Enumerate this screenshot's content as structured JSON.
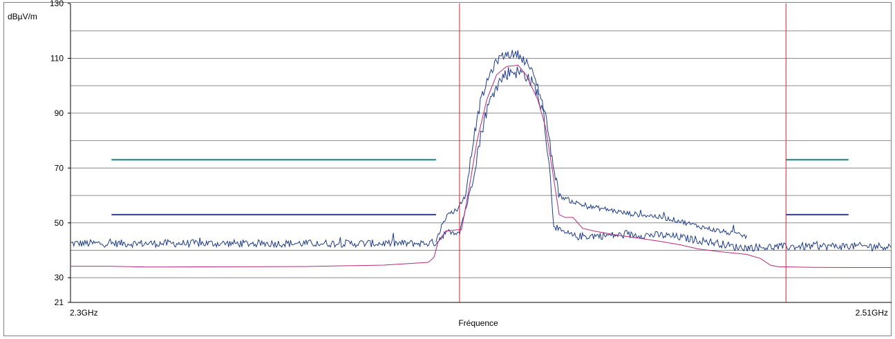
{
  "chart_data": {
    "type": "line",
    "ylabel": "dBµV/m",
    "xlabel": "Fréquence",
    "x_tick_labels": [
      "2.3GHz",
      "2.51GHz"
    ],
    "x_unit": "GHz",
    "xlim": [
      2.3,
      2.51
    ],
    "ylim": [
      21,
      130
    ],
    "y_tick_labels": [
      "130",
      "110",
      "90",
      "70",
      "50",
      "30",
      "21"
    ],
    "y_ticks": [
      130,
      110,
      90,
      70,
      50,
      30,
      21
    ],
    "y_grid_lines": [
      120,
      110,
      100,
      90,
      80,
      70,
      60,
      50,
      40,
      30
    ],
    "grid": true,
    "markers": [
      {
        "x": 2.3995,
        "color": "#e0202a"
      },
      {
        "x": 2.483,
        "color": "#e0202a"
      }
    ],
    "limit_lines": [
      {
        "color": "#0f8080",
        "y": 73,
        "segments": [
          [
            2.3105,
            2.3935
          ],
          [
            2.483,
            2.499
          ]
        ]
      },
      {
        "color": "#26408f",
        "y": 53,
        "segments": [
          [
            2.3105,
            2.3935
          ],
          [
            2.483,
            2.499
          ]
        ]
      }
    ],
    "series": [
      {
        "color": "#1c3a8c",
        "style": "noisy",
        "noise_amp": 1.4,
        "points": [
          [
            2.3,
            42.5
          ],
          [
            2.39,
            42.5
          ],
          [
            2.3935,
            42.8
          ],
          [
            2.3955,
            46
          ],
          [
            2.397,
            46.5
          ],
          [
            2.3995,
            47
          ],
          [
            2.402,
            60
          ],
          [
            2.404,
            75
          ],
          [
            2.406,
            89
          ],
          [
            2.4085,
            99
          ],
          [
            2.411,
            104
          ],
          [
            2.413,
            105.5
          ],
          [
            2.4165,
            104
          ],
          [
            2.419,
            99
          ],
          [
            2.421,
            89
          ],
          [
            2.422,
            77
          ],
          [
            2.423,
            62
          ],
          [
            2.4235,
            50
          ],
          [
            2.425,
            47
          ],
          [
            2.429,
            45
          ],
          [
            2.434,
            45.3
          ],
          [
            2.44,
            45.5
          ],
          [
            2.446,
            45.6
          ],
          [
            2.451,
            45.5
          ],
          [
            2.4555,
            44.8
          ],
          [
            2.46,
            43.8
          ],
          [
            2.466,
            42.5
          ],
          [
            2.47,
            41.2
          ],
          [
            2.473,
            41
          ],
          [
            2.483,
            41.3
          ],
          [
            2.49,
            41.5
          ],
          [
            2.51,
            41.5
          ]
        ]
      },
      {
        "color": "#1c3a8c",
        "style": "noisy",
        "noise_amp": 0.9,
        "points": [
          [
            2.3935,
            43.3
          ],
          [
            2.3955,
            51
          ],
          [
            2.397,
            53.5
          ],
          [
            2.399,
            55
          ],
          [
            2.401,
            60
          ],
          [
            2.403,
            80
          ],
          [
            2.405,
            95
          ],
          [
            2.4075,
            105
          ],
          [
            2.4095,
            110
          ],
          [
            2.4115,
            111.5
          ],
          [
            2.4145,
            111.5
          ],
          [
            2.417,
            108
          ],
          [
            2.419,
            102
          ],
          [
            2.4215,
            90
          ],
          [
            2.423,
            75
          ],
          [
            2.425,
            60
          ],
          [
            2.428,
            58
          ],
          [
            2.432,
            56
          ],
          [
            2.437,
            55
          ],
          [
            2.442,
            53.5
          ],
          [
            2.449,
            52.5
          ],
          [
            2.455,
            51
          ],
          [
            2.46,
            49
          ],
          [
            2.4645,
            47.5
          ],
          [
            2.469,
            46.2
          ],
          [
            2.473,
            45
          ]
        ]
      },
      {
        "color": "#b8287a",
        "style": "smooth",
        "points": [
          [
            2.3,
            34.2
          ],
          [
            2.31,
            34.2
          ],
          [
            2.32,
            33.9
          ],
          [
            2.34,
            34.0
          ],
          [
            2.36,
            34.1
          ],
          [
            2.38,
            34.6
          ],
          [
            2.3915,
            35.6
          ],
          [
            2.393,
            37.5
          ],
          [
            2.394,
            43
          ],
          [
            2.396,
            47
          ],
          [
            2.399,
            47.5
          ],
          [
            2.4,
            47.5
          ],
          [
            2.402,
            63
          ],
          [
            2.404,
            80
          ],
          [
            2.4065,
            95
          ],
          [
            2.409,
            104
          ],
          [
            2.4115,
            107
          ],
          [
            2.4145,
            107.5
          ],
          [
            2.4165,
            104
          ],
          [
            2.4195,
            95
          ],
          [
            2.4215,
            85
          ],
          [
            2.4235,
            67
          ],
          [
            2.425,
            53
          ],
          [
            2.4265,
            52
          ],
          [
            2.4285,
            52
          ],
          [
            2.431,
            48
          ],
          [
            2.434,
            47
          ],
          [
            2.44,
            45.5
          ],
          [
            2.445,
            44.5
          ],
          [
            2.451,
            43.2
          ],
          [
            2.456,
            42
          ],
          [
            2.4605,
            40.5
          ],
          [
            2.466,
            39.5
          ],
          [
            2.473,
            38.5
          ],
          [
            2.4765,
            37
          ],
          [
            2.479,
            34.6
          ],
          [
            2.481,
            34
          ],
          [
            2.49,
            33.8
          ],
          [
            2.5,
            33.7
          ],
          [
            2.51,
            33.7
          ]
        ]
      }
    ]
  }
}
